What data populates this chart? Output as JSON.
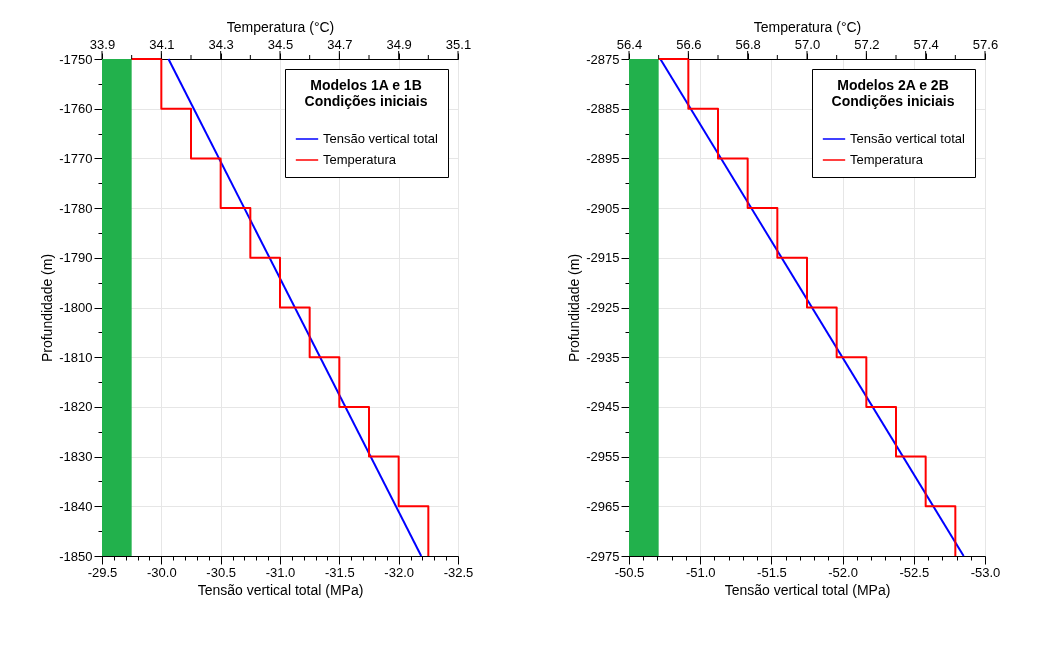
{
  "chart_data": [
    {
      "type": "line",
      "xlabel": "Tensão vertical total (MPa)",
      "x2label": "Temperatura (°C)",
      "ylabel": "Profundidade (m)",
      "legend_title": "Modelos 1A e 1B",
      "subtitle": "Condições iniciais",
      "legend": "top right",
      "grid": true,
      "xlim": [
        -29.5,
        -32.5
      ],
      "xticks": [
        -29.5,
        {
          "value": -29.6,
          "label": null
        },
        {
          "value": -29.7,
          "label": null
        },
        {
          "value": -29.8,
          "label": null
        },
        {
          "value": -29.9,
          "label": null
        },
        {
          "value": -30,
          "label": "-30.0"
        },
        {
          "value": -30.1,
          "label": null
        },
        {
          "value": -30.2,
          "label": null
        },
        {
          "value": -30.3,
          "label": null
        },
        {
          "value": -30.4,
          "label": null
        },
        -30.5,
        {
          "value": -30.6,
          "label": null
        },
        {
          "value": -30.7,
          "label": null
        },
        {
          "value": -30.8,
          "label": null
        },
        {
          "value": -30.9,
          "label": null
        },
        {
          "value": -31,
          "label": "-31.0"
        },
        {
          "value": -31.1,
          "label": null
        },
        {
          "value": -31.2,
          "label": null
        },
        {
          "value": -31.3,
          "label": null
        },
        {
          "value": -31.4,
          "label": null
        },
        -31.5,
        {
          "value": -31.6,
          "label": null
        },
        {
          "value": -31.7,
          "label": null
        },
        {
          "value": -31.8,
          "label": null
        },
        {
          "value": -31.9,
          "label": null
        },
        {
          "value": -32,
          "label": "-32.0"
        },
        {
          "value": -32.1,
          "label": null
        },
        {
          "value": -32.2,
          "label": null
        },
        {
          "value": -32.3,
          "label": null
        },
        {
          "value": -32.4,
          "label": null
        },
        -32.5
      ],
      "x2lim": [
        33.9,
        35.1
      ],
      "x2ticks": [
        33.9,
        {
          "value": 34.0,
          "label": null
        },
        34.1,
        {
          "value": 34.2,
          "label": null
        },
        34.3,
        {
          "value": 34.4,
          "label": null
        },
        34.5,
        {
          "value": 34.6,
          "label": null
        },
        34.7,
        {
          "value": 34.8,
          "label": null
        },
        34.9,
        {
          "value": 35.0,
          "label": null
        },
        35.1
      ],
      "ylim": [
        -1850,
        -1750
      ],
      "yticks": [
        -1750,
        {
          "value": -1755,
          "label": null
        },
        -1760,
        {
          "value": -1765,
          "label": null
        },
        -1770,
        {
          "value": -1775,
          "label": null
        },
        -1780,
        {
          "value": -1785,
          "label": null
        },
        -1790,
        {
          "value": -1795,
          "label": null
        },
        -1800,
        {
          "value": -1805,
          "label": null
        },
        -1810,
        {
          "value": -1815,
          "label": null
        },
        -1820,
        {
          "value": -1825,
          "label": null
        },
        -1830,
        {
          "value": -1835,
          "label": null
        },
        -1840,
        {
          "value": -1845,
          "label": null
        },
        -1850
      ],
      "bands": [
        {
          "axis": "x2",
          "from": 33.9,
          "to": 34.0,
          "color": "#22b14c"
        }
      ],
      "series": [
        {
          "name": "Tensão vertical total",
          "color": "#0000ff",
          "x": [
            -30.06,
            -32.19
          ],
          "values": [
            -1750,
            -1850
          ]
        },
        {
          "name": "Temperatura",
          "color": "#ff0000",
          "axis": "x2",
          "x": [
            34.0,
            34.1,
            34.1,
            34.2,
            34.2,
            34.3,
            34.3,
            34.4,
            34.4,
            34.5,
            34.5,
            34.6,
            34.6,
            34.7,
            34.7,
            34.8,
            34.8,
            34.9,
            34.9,
            35.0,
            35.0
          ],
          "values": [
            -1750,
            -1750,
            -1760,
            -1760,
            -1770,
            -1770,
            -1780,
            -1780,
            -1790,
            -1790,
            -1800,
            -1800,
            -1810,
            -1810,
            -1820,
            -1820,
            -1830,
            -1830,
            -1840,
            -1840,
            -1850
          ]
        }
      ]
    },
    {
      "type": "line",
      "xlabel": "Tensão vertical total (MPa)",
      "x2label": "Temperatura (°C)",
      "ylabel": "Profundidade (m)",
      "legend_title": "Modelos 2A e 2B",
      "subtitle": "Condições iniciais",
      "legend": "top right",
      "grid": true,
      "xlim": [
        -50.5,
        -53.0
      ],
      "xticks": [
        -50.5,
        {
          "value": -50.6,
          "label": null
        },
        {
          "value": -50.7,
          "label": null
        },
        {
          "value": -50.8,
          "label": null
        },
        {
          "value": -50.9,
          "label": null
        },
        {
          "value": -51,
          "label": "-51.0"
        },
        {
          "value": -51.1,
          "label": null
        },
        {
          "value": -51.2,
          "label": null
        },
        {
          "value": -51.3,
          "label": null
        },
        {
          "value": -51.4,
          "label": null
        },
        -51.5,
        {
          "value": -51.6,
          "label": null
        },
        {
          "value": -51.7,
          "label": null
        },
        {
          "value": -51.8,
          "label": null
        },
        {
          "value": -51.9,
          "label": null
        },
        {
          "value": -52,
          "label": "-52.0"
        },
        {
          "value": -52.1,
          "label": null
        },
        {
          "value": -52.2,
          "label": null
        },
        {
          "value": -52.3,
          "label": null
        },
        {
          "value": -52.4,
          "label": null
        },
        -52.5,
        {
          "value": -52.6,
          "label": null
        },
        {
          "value": -52.7,
          "label": null
        },
        {
          "value": -52.8,
          "label": null
        },
        {
          "value": -52.9,
          "label": null
        },
        {
          "value": -53,
          "label": "-53.0"
        }
      ],
      "x2lim": [
        56.4,
        57.6
      ],
      "x2ticks": [
        56.4,
        {
          "value": 56.5,
          "label": null
        },
        56.6,
        {
          "value": 56.7,
          "label": null
        },
        56.8,
        {
          "value": 56.9,
          "label": null
        },
        {
          "value": 57.0,
          "label": "57.0"
        },
        {
          "value": 57.1,
          "label": null
        },
        57.2,
        {
          "value": 57.3,
          "label": null
        },
        57.4,
        {
          "value": 57.5,
          "label": null
        },
        57.6
      ],
      "ylim": [
        -2975,
        -2875
      ],
      "yticks": [
        -2875,
        {
          "value": -2880,
          "label": null
        },
        -2885,
        {
          "value": -2890,
          "label": null
        },
        -2895,
        {
          "value": -2900,
          "label": null
        },
        -2905,
        {
          "value": -2910,
          "label": null
        },
        -2915,
        {
          "value": -2920,
          "label": null
        },
        -2925,
        {
          "value": -2930,
          "label": null
        },
        -2935,
        {
          "value": -2940,
          "label": null
        },
        -2945,
        {
          "value": -2950,
          "label": null
        },
        -2955,
        {
          "value": -2960,
          "label": null
        },
        -2965,
        {
          "value": -2970,
          "label": null
        },
        -2975
      ],
      "bands": [
        {
          "axis": "x2",
          "from": 56.4,
          "to": 56.5,
          "color": "#22b14c"
        }
      ],
      "series": [
        {
          "name": "Tensão vertical total",
          "color": "#0000ff",
          "x": [
            -50.72,
            -52.85
          ],
          "values": [
            -2875,
            -2975
          ]
        },
        {
          "name": "Temperatura",
          "color": "#ff0000",
          "axis": "x2",
          "x": [
            56.5,
            56.6,
            56.6,
            56.7,
            56.7,
            56.8,
            56.8,
            56.9,
            56.9,
            57.0,
            57.0,
            57.1,
            57.1,
            57.2,
            57.2,
            57.3,
            57.3,
            57.4,
            57.4,
            57.5,
            57.5
          ],
          "values": [
            -2875,
            -2875,
            -2885,
            -2885,
            -2895,
            -2895,
            -2905,
            -2905,
            -2915,
            -2915,
            -2925,
            -2925,
            -2935,
            -2935,
            -2945,
            -2945,
            -2955,
            -2955,
            -2965,
            -2965,
            -2975
          ]
        }
      ]
    }
  ]
}
